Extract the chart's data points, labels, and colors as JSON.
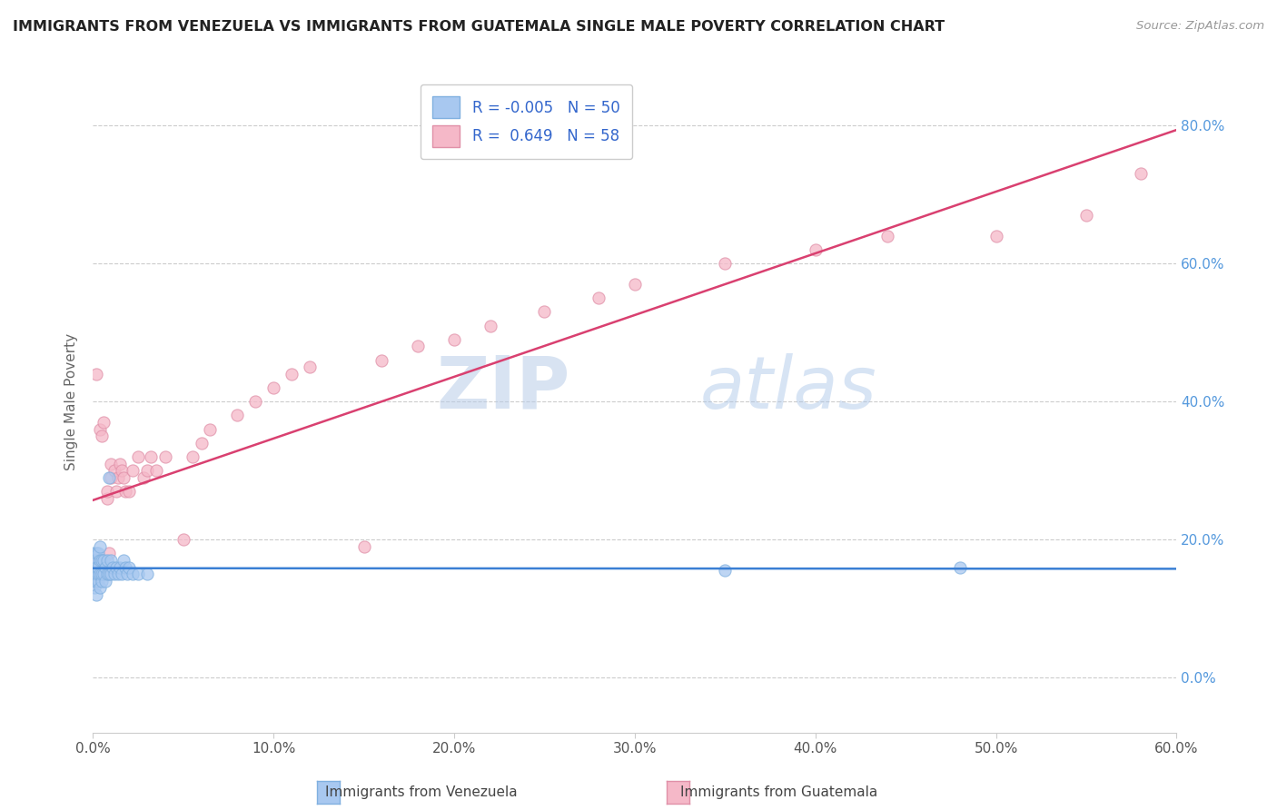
{
  "title": "IMMIGRANTS FROM VENEZUELA VS IMMIGRANTS FROM GUATEMALA SINGLE MALE POVERTY CORRELATION CHART",
  "source": "Source: ZipAtlas.com",
  "ylabel": "Single Male Poverty",
  "xlabel_venezuela": "Immigrants from Venezuela",
  "xlabel_guatemala": "Immigrants from Guatemala",
  "R_venezuela": -0.005,
  "N_venezuela": 50,
  "R_guatemala": 0.649,
  "N_guatemala": 58,
  "color_venezuela": "#a8c8f0",
  "color_guatemala": "#f5b8c8",
  "line_color_venezuela": "#3a7fd4",
  "line_color_guatemala": "#d94070",
  "title_color": "#222222",
  "source_color": "#999999",
  "right_axis_color": "#5599dd",
  "xlim": [
    0.0,
    0.6
  ],
  "ylim": [
    -0.08,
    0.88
  ],
  "venezuela_x": [
    0.0,
    0.0,
    0.0,
    0.0,
    0.0,
    0.001,
    0.001,
    0.001,
    0.001,
    0.002,
    0.002,
    0.002,
    0.002,
    0.002,
    0.003,
    0.003,
    0.003,
    0.003,
    0.004,
    0.004,
    0.004,
    0.004,
    0.005,
    0.005,
    0.005,
    0.006,
    0.006,
    0.007,
    0.007,
    0.008,
    0.008,
    0.009,
    0.009,
    0.01,
    0.01,
    0.011,
    0.012,
    0.013,
    0.014,
    0.015,
    0.016,
    0.017,
    0.018,
    0.019,
    0.02,
    0.022,
    0.025,
    0.03,
    0.35,
    0.48
  ],
  "venezuela_y": [
    0.14,
    0.15,
    0.16,
    0.17,
    0.18,
    0.13,
    0.15,
    0.16,
    0.17,
    0.12,
    0.14,
    0.15,
    0.16,
    0.18,
    0.14,
    0.15,
    0.16,
    0.18,
    0.13,
    0.15,
    0.17,
    0.19,
    0.14,
    0.15,
    0.17,
    0.15,
    0.17,
    0.14,
    0.16,
    0.15,
    0.17,
    0.15,
    0.29,
    0.15,
    0.17,
    0.16,
    0.15,
    0.16,
    0.15,
    0.16,
    0.15,
    0.17,
    0.16,
    0.15,
    0.16,
    0.15,
    0.15,
    0.15,
    0.155,
    0.16
  ],
  "guatemala_x": [
    0.0,
    0.0,
    0.001,
    0.001,
    0.002,
    0.002,
    0.002,
    0.003,
    0.003,
    0.004,
    0.004,
    0.005,
    0.005,
    0.006,
    0.007,
    0.008,
    0.008,
    0.009,
    0.01,
    0.01,
    0.012,
    0.013,
    0.014,
    0.015,
    0.016,
    0.017,
    0.018,
    0.02,
    0.022,
    0.025,
    0.028,
    0.03,
    0.032,
    0.035,
    0.04,
    0.05,
    0.055,
    0.06,
    0.065,
    0.08,
    0.09,
    0.1,
    0.11,
    0.12,
    0.15,
    0.16,
    0.18,
    0.2,
    0.22,
    0.25,
    0.28,
    0.3,
    0.35,
    0.4,
    0.44,
    0.5,
    0.55,
    0.58
  ],
  "guatemala_y": [
    0.15,
    0.17,
    0.14,
    0.17,
    0.15,
    0.16,
    0.44,
    0.15,
    0.17,
    0.16,
    0.36,
    0.35,
    0.17,
    0.37,
    0.16,
    0.26,
    0.27,
    0.18,
    0.29,
    0.31,
    0.3,
    0.27,
    0.29,
    0.31,
    0.3,
    0.29,
    0.27,
    0.27,
    0.3,
    0.32,
    0.29,
    0.3,
    0.32,
    0.3,
    0.32,
    0.2,
    0.32,
    0.34,
    0.36,
    0.38,
    0.4,
    0.42,
    0.44,
    0.45,
    0.19,
    0.46,
    0.48,
    0.49,
    0.51,
    0.53,
    0.55,
    0.57,
    0.6,
    0.62,
    0.64,
    0.64,
    0.67,
    0.73
  ],
  "watermark_zip": "ZIP",
  "watermark_atlas": "atlas",
  "xtick_labels": [
    "0.0%",
    "10.0%",
    "20.0%",
    "30.0%",
    "40.0%",
    "50.0%",
    "60.0%"
  ],
  "xtick_vals": [
    0.0,
    0.1,
    0.2,
    0.3,
    0.4,
    0.5,
    0.6
  ],
  "ytick_labels_right": [
    "0.0%",
    "20.0%",
    "40.0%",
    "60.0%",
    "80.0%"
  ],
  "ytick_vals": [
    0.0,
    0.2,
    0.4,
    0.6,
    0.8
  ]
}
